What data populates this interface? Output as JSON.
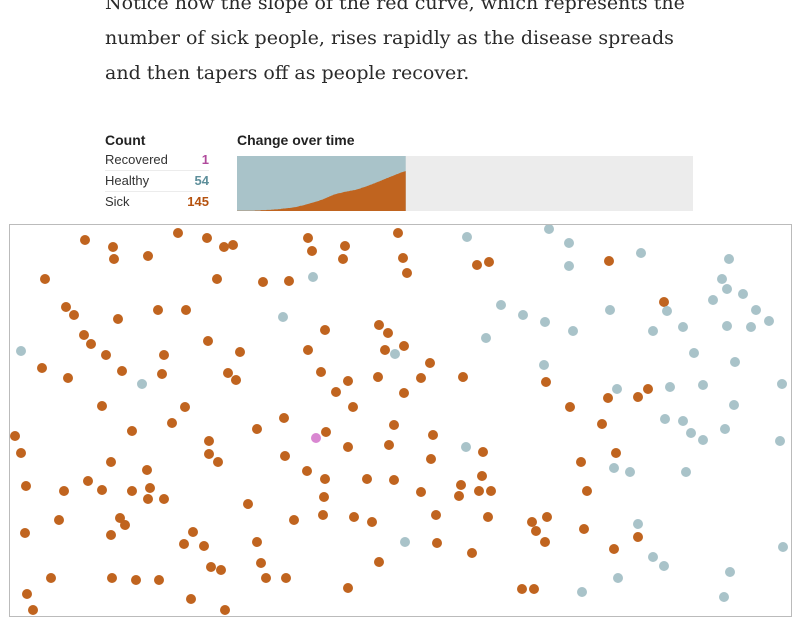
{
  "text": {
    "paragraph": "Notice how the slope of the red curve, which represents the number of sick people, rises rapidly as the disease spreads and then tapers off as people recover."
  },
  "count": {
    "title": "Count",
    "rows": [
      {
        "label": "Recovered",
        "value": "1",
        "color": "#b04a9c"
      },
      {
        "label": "Healthy",
        "value": "54",
        "color": "#5e8f9b"
      },
      {
        "label": "Sick",
        "value": "145",
        "color": "#b5520f"
      }
    ]
  },
  "change_title": "Change over time",
  "colors": {
    "sick": "#c0641f",
    "healthy": "#a9c3c9",
    "recovered": "#d987d1",
    "empty": "#ececec",
    "border": "#bbbbbb"
  },
  "chart_data": {
    "type": "area",
    "title": "Change over time",
    "population": 200,
    "time_fraction_elapsed": 0.37,
    "series": [
      {
        "name": "Sick",
        "values": [
          1,
          1,
          1,
          1,
          1,
          1,
          1,
          1,
          1,
          1,
          1,
          1,
          1,
          1,
          1,
          1,
          1,
          1,
          1,
          2,
          2,
          2,
          2,
          2,
          2,
          3,
          3,
          3,
          3,
          3,
          3,
          4,
          4,
          4,
          4,
          4,
          5,
          5,
          5,
          6,
          6,
          6,
          6,
          7,
          7,
          7,
          8,
          8,
          9,
          9,
          9,
          10,
          10,
          11,
          11,
          11,
          12,
          12,
          13,
          13,
          14,
          14,
          15,
          16,
          17,
          18,
          19,
          19,
          20,
          21,
          22,
          23,
          24,
          25,
          26,
          27,
          28,
          29,
          30,
          31,
          32,
          33,
          34,
          35,
          36,
          37,
          39,
          40,
          41,
          42,
          44,
          45,
          47,
          48,
          50,
          51,
          53,
          54,
          56,
          57,
          59,
          60,
          61,
          62,
          63,
          64,
          65,
          65,
          66,
          67,
          68,
          69,
          70,
          70,
          71,
          72,
          72,
          73,
          74,
          74,
          75,
          76,
          76,
          77,
          78,
          79,
          80,
          81,
          82,
          84,
          85,
          86,
          87,
          88,
          89,
          91,
          92,
          93,
          95,
          96,
          97,
          99,
          100,
          101,
          103,
          104,
          106,
          107,
          108,
          110,
          111,
          113,
          114,
          116,
          117,
          119,
          120,
          121,
          123,
          124,
          126,
          127,
          128,
          130,
          131,
          133,
          134,
          135,
          137,
          138,
          140,
          141,
          142,
          143,
          144,
          145
        ]
      },
      {
        "name": "Recovered",
        "values": [
          1
        ]
      },
      {
        "name": "Healthy",
        "values": [
          54
        ]
      }
    ]
  },
  "simulation": {
    "people": [
      {
        "x": 85,
        "y": 240,
        "s": "sick"
      },
      {
        "x": 113,
        "y": 247,
        "s": "sick"
      },
      {
        "x": 114,
        "y": 259,
        "s": "sick"
      },
      {
        "x": 148,
        "y": 256,
        "s": "sick"
      },
      {
        "x": 178,
        "y": 233,
        "s": "sick"
      },
      {
        "x": 207,
        "y": 238,
        "s": "sick"
      },
      {
        "x": 224,
        "y": 247,
        "s": "sick"
      },
      {
        "x": 233,
        "y": 245,
        "s": "sick"
      },
      {
        "x": 308,
        "y": 238,
        "s": "sick"
      },
      {
        "x": 312,
        "y": 251,
        "s": "sick"
      },
      {
        "x": 345,
        "y": 246,
        "s": "sick"
      },
      {
        "x": 343,
        "y": 259,
        "s": "sick"
      },
      {
        "x": 398,
        "y": 233,
        "s": "sick"
      },
      {
        "x": 403,
        "y": 258,
        "s": "sick"
      },
      {
        "x": 407,
        "y": 273,
        "s": "sick"
      },
      {
        "x": 477,
        "y": 265,
        "s": "sick"
      },
      {
        "x": 489,
        "y": 262,
        "s": "sick"
      },
      {
        "x": 609,
        "y": 261,
        "s": "sick"
      },
      {
        "x": 45,
        "y": 279,
        "s": "sick"
      },
      {
        "x": 217,
        "y": 279,
        "s": "sick"
      },
      {
        "x": 263,
        "y": 282,
        "s": "sick"
      },
      {
        "x": 289,
        "y": 281,
        "s": "sick"
      },
      {
        "x": 66,
        "y": 307,
        "s": "sick"
      },
      {
        "x": 74,
        "y": 315,
        "s": "sick"
      },
      {
        "x": 118,
        "y": 319,
        "s": "sick"
      },
      {
        "x": 158,
        "y": 310,
        "s": "sick"
      },
      {
        "x": 186,
        "y": 310,
        "s": "sick"
      },
      {
        "x": 84,
        "y": 335,
        "s": "sick"
      },
      {
        "x": 91,
        "y": 344,
        "s": "sick"
      },
      {
        "x": 106,
        "y": 355,
        "s": "sick"
      },
      {
        "x": 164,
        "y": 355,
        "s": "sick"
      },
      {
        "x": 208,
        "y": 341,
        "s": "sick"
      },
      {
        "x": 240,
        "y": 352,
        "s": "sick"
      },
      {
        "x": 325,
        "y": 330,
        "s": "sick"
      },
      {
        "x": 308,
        "y": 350,
        "s": "sick"
      },
      {
        "x": 379,
        "y": 325,
        "s": "sick"
      },
      {
        "x": 388,
        "y": 333,
        "s": "sick"
      },
      {
        "x": 385,
        "y": 350,
        "s": "sick"
      },
      {
        "x": 404,
        "y": 346,
        "s": "sick"
      },
      {
        "x": 430,
        "y": 363,
        "s": "sick"
      },
      {
        "x": 42,
        "y": 368,
        "s": "sick"
      },
      {
        "x": 68,
        "y": 378,
        "s": "sick"
      },
      {
        "x": 122,
        "y": 371,
        "s": "sick"
      },
      {
        "x": 162,
        "y": 374,
        "s": "sick"
      },
      {
        "x": 228,
        "y": 373,
        "s": "sick"
      },
      {
        "x": 236,
        "y": 380,
        "s": "sick"
      },
      {
        "x": 321,
        "y": 372,
        "s": "sick"
      },
      {
        "x": 336,
        "y": 392,
        "s": "sick"
      },
      {
        "x": 348,
        "y": 381,
        "s": "sick"
      },
      {
        "x": 378,
        "y": 377,
        "s": "sick"
      },
      {
        "x": 404,
        "y": 393,
        "s": "sick"
      },
      {
        "x": 421,
        "y": 378,
        "s": "sick"
      },
      {
        "x": 463,
        "y": 377,
        "s": "sick"
      },
      {
        "x": 546,
        "y": 382,
        "s": "sick"
      },
      {
        "x": 102,
        "y": 406,
        "s": "sick"
      },
      {
        "x": 185,
        "y": 407,
        "s": "sick"
      },
      {
        "x": 353,
        "y": 407,
        "s": "sick"
      },
      {
        "x": 570,
        "y": 407,
        "s": "sick"
      },
      {
        "x": 608,
        "y": 398,
        "s": "sick"
      },
      {
        "x": 638,
        "y": 397,
        "s": "sick"
      },
      {
        "x": 648,
        "y": 389,
        "s": "sick"
      },
      {
        "x": 664,
        "y": 302,
        "s": "sick"
      },
      {
        "x": 15,
        "y": 436,
        "s": "sick"
      },
      {
        "x": 132,
        "y": 431,
        "s": "sick"
      },
      {
        "x": 172,
        "y": 423,
        "s": "sick"
      },
      {
        "x": 257,
        "y": 429,
        "s": "sick"
      },
      {
        "x": 284,
        "y": 418,
        "s": "sick"
      },
      {
        "x": 326,
        "y": 432,
        "s": "sick"
      },
      {
        "x": 394,
        "y": 425,
        "s": "sick"
      },
      {
        "x": 433,
        "y": 435,
        "s": "sick"
      },
      {
        "x": 602,
        "y": 424,
        "s": "sick"
      },
      {
        "x": 21,
        "y": 453,
        "s": "sick"
      },
      {
        "x": 209,
        "y": 441,
        "s": "sick"
      },
      {
        "x": 209,
        "y": 454,
        "s": "sick"
      },
      {
        "x": 218,
        "y": 462,
        "s": "sick"
      },
      {
        "x": 285,
        "y": 456,
        "s": "sick"
      },
      {
        "x": 348,
        "y": 447,
        "s": "sick"
      },
      {
        "x": 389,
        "y": 445,
        "s": "sick"
      },
      {
        "x": 431,
        "y": 459,
        "s": "sick"
      },
      {
        "x": 483,
        "y": 452,
        "s": "sick"
      },
      {
        "x": 616,
        "y": 453,
        "s": "sick"
      },
      {
        "x": 111,
        "y": 462,
        "s": "sick"
      },
      {
        "x": 147,
        "y": 470,
        "s": "sick"
      },
      {
        "x": 307,
        "y": 471,
        "s": "sick"
      },
      {
        "x": 581,
        "y": 462,
        "s": "sick"
      },
      {
        "x": 26,
        "y": 486,
        "s": "sick"
      },
      {
        "x": 64,
        "y": 491,
        "s": "sick"
      },
      {
        "x": 88,
        "y": 481,
        "s": "sick"
      },
      {
        "x": 102,
        "y": 490,
        "s": "sick"
      },
      {
        "x": 132,
        "y": 491,
        "s": "sick"
      },
      {
        "x": 150,
        "y": 488,
        "s": "sick"
      },
      {
        "x": 148,
        "y": 499,
        "s": "sick"
      },
      {
        "x": 164,
        "y": 499,
        "s": "sick"
      },
      {
        "x": 325,
        "y": 479,
        "s": "sick"
      },
      {
        "x": 324,
        "y": 497,
        "s": "sick"
      },
      {
        "x": 367,
        "y": 479,
        "s": "sick"
      },
      {
        "x": 394,
        "y": 480,
        "s": "sick"
      },
      {
        "x": 421,
        "y": 492,
        "s": "sick"
      },
      {
        "x": 461,
        "y": 485,
        "s": "sick"
      },
      {
        "x": 459,
        "y": 496,
        "s": "sick"
      },
      {
        "x": 482,
        "y": 476,
        "s": "sick"
      },
      {
        "x": 479,
        "y": 491,
        "s": "sick"
      },
      {
        "x": 491,
        "y": 491,
        "s": "sick"
      },
      {
        "x": 587,
        "y": 491,
        "s": "sick"
      },
      {
        "x": 248,
        "y": 504,
        "s": "sick"
      },
      {
        "x": 59,
        "y": 520,
        "s": "sick"
      },
      {
        "x": 120,
        "y": 518,
        "s": "sick"
      },
      {
        "x": 125,
        "y": 525,
        "s": "sick"
      },
      {
        "x": 111,
        "y": 535,
        "s": "sick"
      },
      {
        "x": 294,
        "y": 520,
        "s": "sick"
      },
      {
        "x": 323,
        "y": 515,
        "s": "sick"
      },
      {
        "x": 354,
        "y": 517,
        "s": "sick"
      },
      {
        "x": 372,
        "y": 522,
        "s": "sick"
      },
      {
        "x": 436,
        "y": 515,
        "s": "sick"
      },
      {
        "x": 488,
        "y": 517,
        "s": "sick"
      },
      {
        "x": 532,
        "y": 522,
        "s": "sick"
      },
      {
        "x": 547,
        "y": 517,
        "s": "sick"
      },
      {
        "x": 536,
        "y": 531,
        "s": "sick"
      },
      {
        "x": 25,
        "y": 533,
        "s": "sick"
      },
      {
        "x": 193,
        "y": 532,
        "s": "sick"
      },
      {
        "x": 184,
        "y": 544,
        "s": "sick"
      },
      {
        "x": 204,
        "y": 546,
        "s": "sick"
      },
      {
        "x": 257,
        "y": 542,
        "s": "sick"
      },
      {
        "x": 437,
        "y": 543,
        "s": "sick"
      },
      {
        "x": 545,
        "y": 542,
        "s": "sick"
      },
      {
        "x": 584,
        "y": 529,
        "s": "sick"
      },
      {
        "x": 638,
        "y": 537,
        "s": "sick"
      },
      {
        "x": 614,
        "y": 549,
        "s": "sick"
      },
      {
        "x": 472,
        "y": 553,
        "s": "sick"
      },
      {
        "x": 379,
        "y": 562,
        "s": "sick"
      },
      {
        "x": 261,
        "y": 563,
        "s": "sick"
      },
      {
        "x": 211,
        "y": 567,
        "s": "sick"
      },
      {
        "x": 221,
        "y": 570,
        "s": "sick"
      },
      {
        "x": 51,
        "y": 578,
        "s": "sick"
      },
      {
        "x": 112,
        "y": 578,
        "s": "sick"
      },
      {
        "x": 136,
        "y": 580,
        "s": "sick"
      },
      {
        "x": 159,
        "y": 580,
        "s": "sick"
      },
      {
        "x": 266,
        "y": 578,
        "s": "sick"
      },
      {
        "x": 286,
        "y": 578,
        "s": "sick"
      },
      {
        "x": 348,
        "y": 588,
        "s": "sick"
      },
      {
        "x": 522,
        "y": 589,
        "s": "sick"
      },
      {
        "x": 534,
        "y": 589,
        "s": "sick"
      },
      {
        "x": 27,
        "y": 594,
        "s": "sick"
      },
      {
        "x": 33,
        "y": 610,
        "s": "sick"
      },
      {
        "x": 191,
        "y": 599,
        "s": "sick"
      },
      {
        "x": 225,
        "y": 610,
        "s": "sick"
      },
      {
        "x": 467,
        "y": 237,
        "s": "healthy"
      },
      {
        "x": 549,
        "y": 229,
        "s": "healthy"
      },
      {
        "x": 569,
        "y": 243,
        "s": "healthy"
      },
      {
        "x": 569,
        "y": 266,
        "s": "healthy"
      },
      {
        "x": 641,
        "y": 253,
        "s": "healthy"
      },
      {
        "x": 729,
        "y": 259,
        "s": "healthy"
      },
      {
        "x": 313,
        "y": 277,
        "s": "healthy"
      },
      {
        "x": 722,
        "y": 279,
        "s": "healthy"
      },
      {
        "x": 727,
        "y": 289,
        "s": "healthy"
      },
      {
        "x": 743,
        "y": 294,
        "s": "healthy"
      },
      {
        "x": 713,
        "y": 300,
        "s": "healthy"
      },
      {
        "x": 501,
        "y": 305,
        "s": "healthy"
      },
      {
        "x": 523,
        "y": 315,
        "s": "healthy"
      },
      {
        "x": 545,
        "y": 322,
        "s": "healthy"
      },
      {
        "x": 610,
        "y": 310,
        "s": "healthy"
      },
      {
        "x": 667,
        "y": 311,
        "s": "healthy"
      },
      {
        "x": 756,
        "y": 310,
        "s": "healthy"
      },
      {
        "x": 769,
        "y": 321,
        "s": "healthy"
      },
      {
        "x": 751,
        "y": 327,
        "s": "healthy"
      },
      {
        "x": 727,
        "y": 326,
        "s": "healthy"
      },
      {
        "x": 683,
        "y": 327,
        "s": "healthy"
      },
      {
        "x": 653,
        "y": 331,
        "s": "healthy"
      },
      {
        "x": 573,
        "y": 331,
        "s": "healthy"
      },
      {
        "x": 283,
        "y": 317,
        "s": "healthy"
      },
      {
        "x": 486,
        "y": 338,
        "s": "healthy"
      },
      {
        "x": 21,
        "y": 351,
        "s": "healthy"
      },
      {
        "x": 395,
        "y": 354,
        "s": "healthy"
      },
      {
        "x": 694,
        "y": 353,
        "s": "healthy"
      },
      {
        "x": 735,
        "y": 362,
        "s": "healthy"
      },
      {
        "x": 544,
        "y": 365,
        "s": "healthy"
      },
      {
        "x": 142,
        "y": 384,
        "s": "healthy"
      },
      {
        "x": 617,
        "y": 389,
        "s": "healthy"
      },
      {
        "x": 670,
        "y": 387,
        "s": "healthy"
      },
      {
        "x": 703,
        "y": 385,
        "s": "healthy"
      },
      {
        "x": 782,
        "y": 384,
        "s": "healthy"
      },
      {
        "x": 734,
        "y": 405,
        "s": "healthy"
      },
      {
        "x": 665,
        "y": 419,
        "s": "healthy"
      },
      {
        "x": 683,
        "y": 421,
        "s": "healthy"
      },
      {
        "x": 691,
        "y": 433,
        "s": "healthy"
      },
      {
        "x": 703,
        "y": 440,
        "s": "healthy"
      },
      {
        "x": 725,
        "y": 429,
        "s": "healthy"
      },
      {
        "x": 780,
        "y": 441,
        "s": "healthy"
      },
      {
        "x": 466,
        "y": 447,
        "s": "healthy"
      },
      {
        "x": 614,
        "y": 468,
        "s": "healthy"
      },
      {
        "x": 630,
        "y": 472,
        "s": "healthy"
      },
      {
        "x": 686,
        "y": 472,
        "s": "healthy"
      },
      {
        "x": 638,
        "y": 524,
        "s": "healthy"
      },
      {
        "x": 405,
        "y": 542,
        "s": "healthy"
      },
      {
        "x": 653,
        "y": 557,
        "s": "healthy"
      },
      {
        "x": 664,
        "y": 566,
        "s": "healthy"
      },
      {
        "x": 783,
        "y": 547,
        "s": "healthy"
      },
      {
        "x": 730,
        "y": 572,
        "s": "healthy"
      },
      {
        "x": 618,
        "y": 578,
        "s": "healthy"
      },
      {
        "x": 582,
        "y": 592,
        "s": "healthy"
      },
      {
        "x": 724,
        "y": 597,
        "s": "healthy"
      },
      {
        "x": 316,
        "y": 438,
        "s": "recovered"
      }
    ]
  }
}
